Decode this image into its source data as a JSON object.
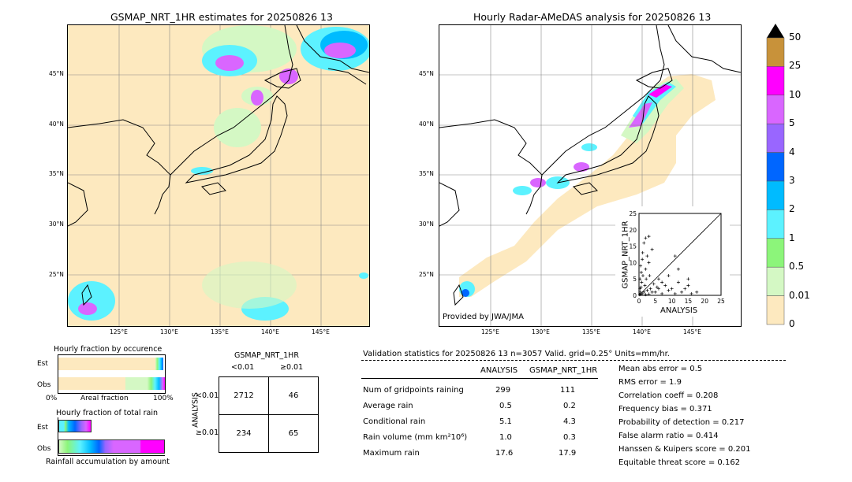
{
  "left_map": {
    "title": "GSMAP_NRT_1HR estimates for 20250826 13",
    "lat_labels": [
      "45°N",
      "40°N",
      "35°N",
      "30°N",
      "25°N"
    ],
    "lon_labels": [
      "125°E",
      "130°E",
      "135°E",
      "140°E",
      "145°E"
    ]
  },
  "right_map": {
    "title": "Hourly Radar-AMeDAS analysis for 20250826 13",
    "lat_labels": [
      "45°N",
      "40°N",
      "35°N",
      "30°N",
      "25°N"
    ],
    "lon_labels": [
      "125°E",
      "130°E",
      "135°E",
      "140°E",
      "145°E"
    ],
    "credit": "Provided by JWA/JMA"
  },
  "colorbar": {
    "labels": [
      "50",
      "25",
      "10",
      "5",
      "4",
      "3",
      "2",
      "1",
      "0.5",
      "0.01",
      "0"
    ],
    "colors": [
      "#c8923a",
      "#ff00ff",
      "#d966ff",
      "#9966ff",
      "#0066ff",
      "#00bbff",
      "#5cf2ff",
      "#8cf57a",
      "#d4f8c4",
      "#fde9bf"
    ]
  },
  "fraction_occurrence": {
    "title": "Hourly fraction by occurence",
    "est_label": "Est",
    "obs_label": "Obs",
    "x_left": "0%",
    "x_mid": "Areal fraction",
    "x_right": "100%",
    "est_value": 0.96,
    "obs_value": 0.9
  },
  "fraction_total": {
    "title": "Hourly fraction of total rain",
    "est_label": "Est",
    "obs_label": "Obs",
    "caption": "Rainfall accumulation by amount"
  },
  "contingency": {
    "title": "GSMAP_NRT_1HR",
    "col_labels": [
      "<0.01",
      "≥0.01"
    ],
    "row_axis": "ANALYSIS",
    "row_labels": [
      "<0.01",
      "≥0.01"
    ],
    "cells": [
      [
        "2712",
        "46"
      ],
      [
        "234",
        "65"
      ]
    ]
  },
  "validation": {
    "header": "Validation statistics for 20250826 13  n=3057 Valid. grid=0.25° Units=mm/hr.",
    "col_analysis": "ANALYSIS",
    "col_gsmap": "GSMAP_NRT_1HR",
    "rows": [
      {
        "label": "Num of gridpoints raining",
        "a": "299",
        "g": "111"
      },
      {
        "label": "Average rain",
        "a": "0.5",
        "g": "0.2"
      },
      {
        "label": "Conditional rain",
        "a": "5.1",
        "g": "4.3"
      },
      {
        "label": "Rain volume (mm km²10⁶)",
        "a": "1.0",
        "g": "0.3"
      },
      {
        "label": "Maximum rain",
        "a": "17.6",
        "g": "17.9"
      }
    ],
    "scores": [
      "Mean abs error =    0.5",
      "RMS error =    1.9",
      "Correlation coeff =  0.208",
      "Frequency bias =  0.371",
      "Probability of detection =  0.217",
      "False alarm ratio =  0.414",
      "Hanssen & Kuipers score =  0.201",
      "Equitable threat score =  0.162"
    ]
  },
  "chart_data": {
    "type": "scatter",
    "xlabel": "ANALYSIS",
    "ylabel": "GSMAP_NRT_1HR",
    "xlim": [
      0,
      25
    ],
    "ylim": [
      0,
      25
    ],
    "ticks": [
      "0",
      "5",
      "10",
      "15",
      "20",
      "25"
    ],
    "points": [
      [
        0.5,
        0.3
      ],
      [
        1,
        0.5
      ],
      [
        1.5,
        1
      ],
      [
        2,
        0.2
      ],
      [
        2.5,
        1.5
      ],
      [
        3,
        0.4
      ],
      [
        3.5,
        2
      ],
      [
        4,
        1
      ],
      [
        0.3,
        2
      ],
      [
        0.8,
        4
      ],
      [
        1.2,
        6
      ],
      [
        0.5,
        9
      ],
      [
        1,
        11
      ],
      [
        2,
        8
      ],
      [
        3,
        10
      ],
      [
        2.5,
        12
      ],
      [
        1.5,
        16
      ],
      [
        2,
        17.5
      ],
      [
        3,
        18
      ],
      [
        5,
        1
      ],
      [
        6,
        2
      ],
      [
        7,
        0.5
      ],
      [
        8,
        3
      ],
      [
        9,
        1.5
      ],
      [
        10,
        2
      ],
      [
        11,
        0.5
      ],
      [
        12,
        4
      ],
      [
        13,
        1
      ],
      [
        14,
        2
      ],
      [
        15,
        3
      ],
      [
        16,
        0.5
      ],
      [
        17.6,
        1
      ],
      [
        12,
        8
      ],
      [
        15,
        5
      ],
      [
        4,
        14
      ],
      [
        6,
        5
      ],
      [
        0.2,
        0.2
      ],
      [
        0.4,
        1
      ],
      [
        0.6,
        2.5
      ],
      [
        1.8,
        3
      ],
      [
        2.2,
        5
      ],
      [
        3.2,
        6
      ],
      [
        4.5,
        3.5
      ],
      [
        5.5,
        2.5
      ],
      [
        7,
        4
      ],
      [
        9,
        6
      ],
      [
        11,
        12
      ],
      [
        0.3,
        5
      ],
      [
        0.7,
        7
      ],
      [
        1.1,
        13
      ]
    ]
  }
}
